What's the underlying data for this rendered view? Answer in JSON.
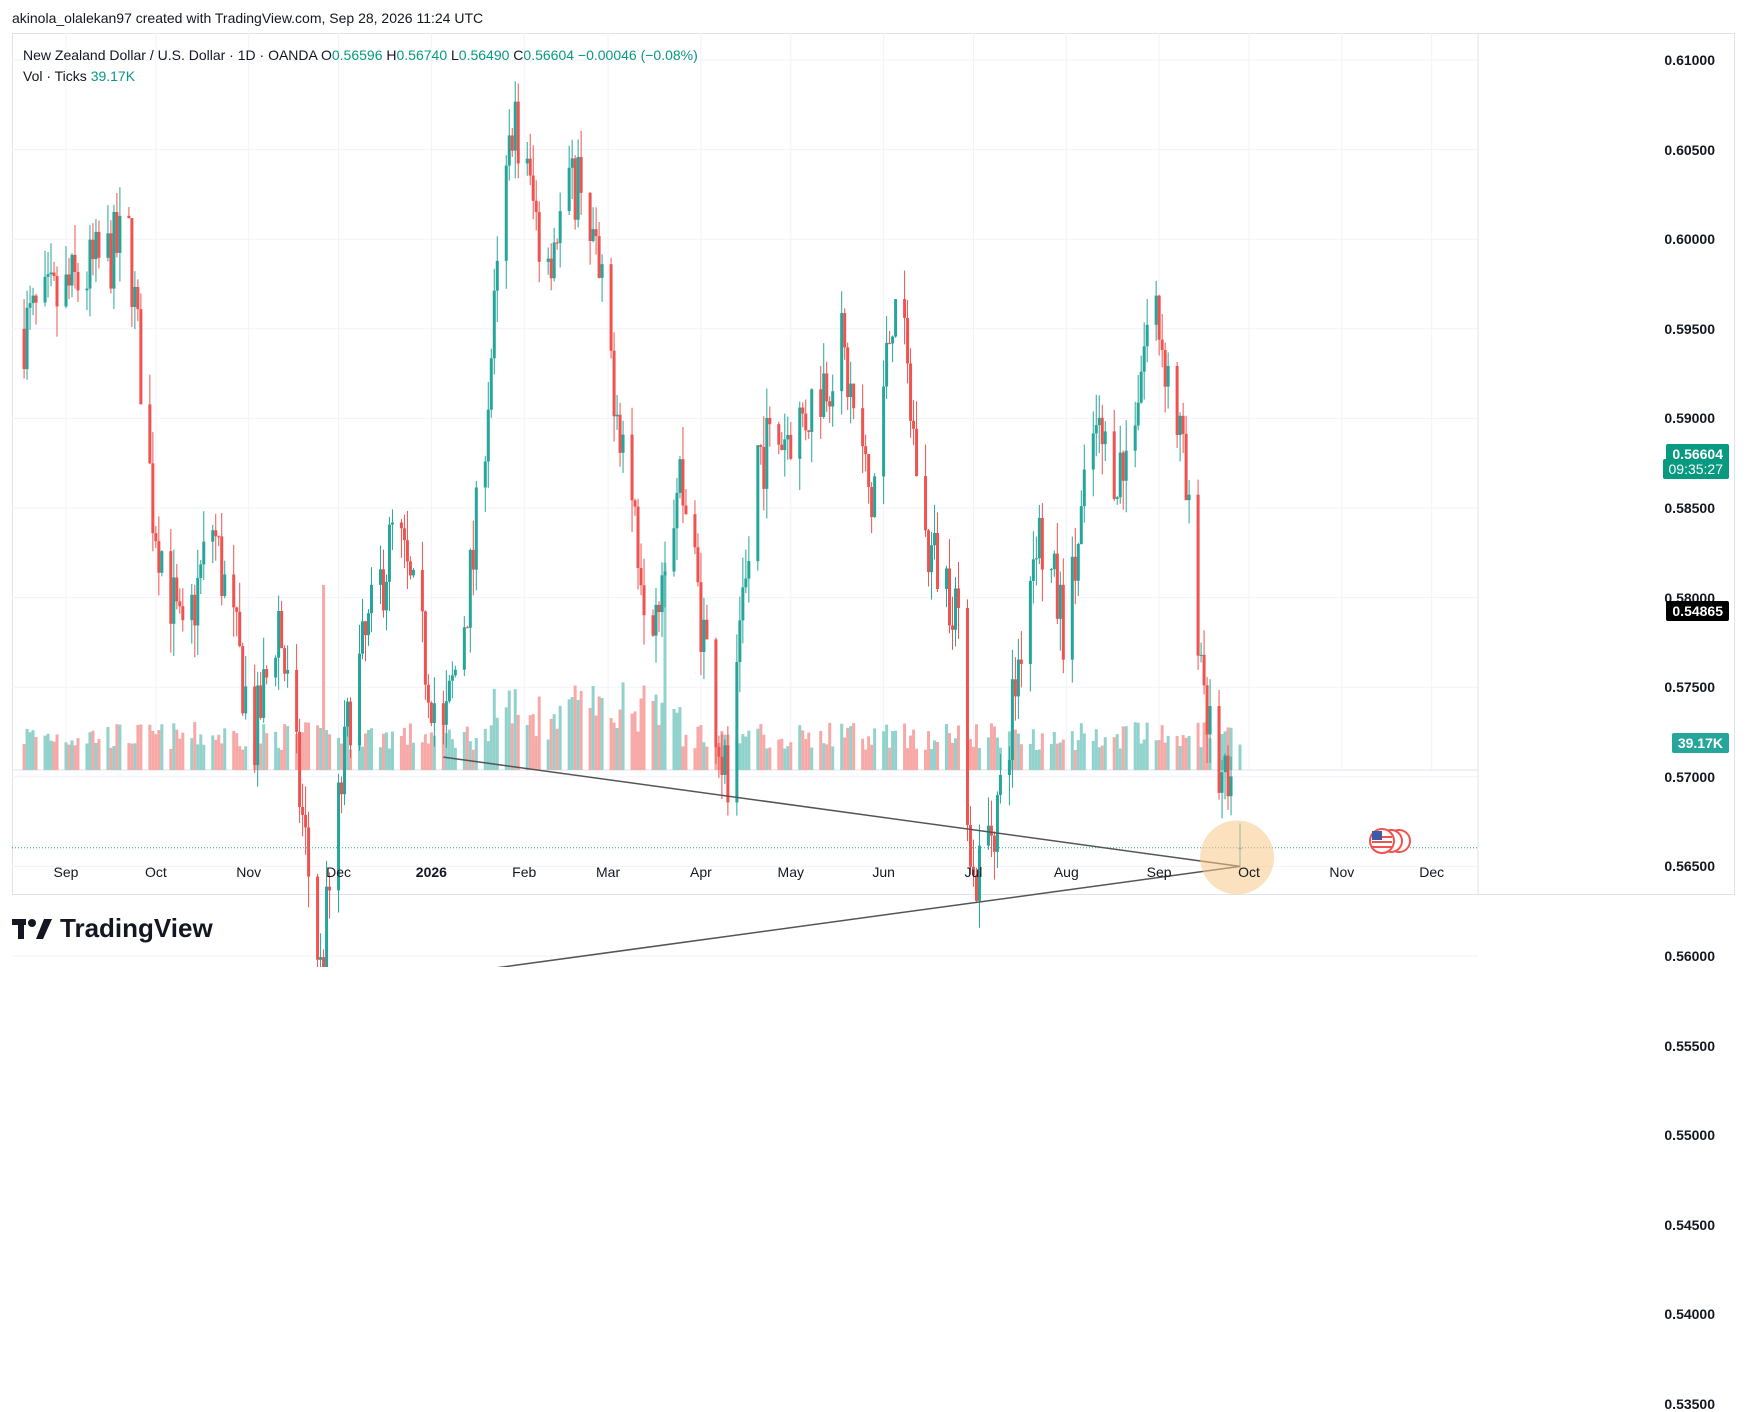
{
  "credit": "akinola_olalekan97 created with TradingView.com, Sep 28, 2026 11:24 UTC",
  "legend": {
    "symbol": "New Zealand Dollar / U.S. Dollar · 1D · OANDA",
    "o_label": "O",
    "o_val": "0.56596",
    "h_label": "H",
    "h_val": "0.56740",
    "l_label": "L",
    "l_val": "0.56490",
    "c_label": "C",
    "c_val": "0.56604",
    "change": "−0.00046 (−0.08%)",
    "vol_label": "Vol · Ticks",
    "vol_val": "39.17K"
  },
  "price_tags": {
    "last_price": "0.56604",
    "countdown": "09:35:27",
    "hline_price": "0.54865",
    "volume": "39.17K"
  },
  "colors": {
    "up": "#26a69a",
    "down": "#ef5350",
    "up_vol": "#92d2cc",
    "down_vol": "#f7a9a7",
    "trendline": "#555555",
    "hline": "#000000",
    "highlight": "#f9c98a"
  },
  "logo_text": "TradingView",
  "chart_data": {
    "type": "candlestick",
    "symbol": "NZDUSD",
    "timeframe": "1D",
    "y_ticks": [
      0.61,
      0.605,
      0.6,
      0.595,
      0.59,
      0.585,
      0.58,
      0.575,
      0.57,
      0.565,
      0.56,
      0.555,
      0.55,
      0.545,
      0.54,
      0.535
    ],
    "y_tick_labels": [
      "0.61000",
      "0.60500",
      "0.60000",
      "0.59500",
      "0.59000",
      "0.58500",
      "0.58000",
      "0.57500",
      "0.57000",
      "0.56500",
      "0.56000",
      "0.55500",
      "0.55000",
      "0.54500",
      "0.54000",
      "0.53500"
    ],
    "x_labels": [
      "Sep",
      "Oct",
      "Nov",
      "Dec",
      "2026",
      "Feb",
      "Mar",
      "Apr",
      "May",
      "Jun",
      "Jul",
      "Aug",
      "Sep",
      "Oct",
      "Nov",
      "Dec"
    ],
    "ylim": [
      0.5315,
      0.6145
    ],
    "last_close": 0.56604,
    "horizontal_line": 0.54865,
    "trendlines": [
      {
        "from": [
          "2026-01-05",
          0.5711
        ],
        "to": [
          "2026-09-28",
          0.565
        ]
      },
      {
        "from": [
          "2025-11-25",
          0.558
        ],
        "to": [
          "2026-09-28",
          0.565
        ]
      }
    ],
    "key_points": [
      {
        "date": "2025-08-18",
        "close": 0.595
      },
      {
        "date": "2025-09-22",
        "close": 0.6
      },
      {
        "date": "2025-09-30",
        "close": 0.585
      },
      {
        "date": "2025-10-10",
        "close": 0.577
      },
      {
        "date": "2025-10-20",
        "close": 0.584
      },
      {
        "date": "2025-11-03",
        "close": 0.572
      },
      {
        "date": "2025-11-11",
        "close": 0.579
      },
      {
        "date": "2025-11-25",
        "close": 0.559
      },
      {
        "date": "2025-12-05",
        "close": 0.574
      },
      {
        "date": "2025-12-20",
        "close": 0.584
      },
      {
        "date": "2026-01-05",
        "close": 0.572
      },
      {
        "date": "2026-01-15",
        "close": 0.582
      },
      {
        "date": "2026-01-28",
        "close": 0.607
      },
      {
        "date": "2026-02-08",
        "close": 0.599
      },
      {
        "date": "2026-02-20",
        "close": 0.604
      },
      {
        "date": "2026-03-05",
        "close": 0.59
      },
      {
        "date": "2026-03-15",
        "close": 0.579
      },
      {
        "date": "2026-03-25",
        "close": 0.587
      },
      {
        "date": "2026-04-10",
        "close": 0.569
      },
      {
        "date": "2026-04-20",
        "close": 0.588
      },
      {
        "date": "2026-05-05",
        "close": 0.59
      },
      {
        "date": "2026-05-18",
        "close": 0.594
      },
      {
        "date": "2026-05-28",
        "close": 0.585
      },
      {
        "date": "2026-06-05",
        "close": 0.598
      },
      {
        "date": "2026-06-15",
        "close": 0.583
      },
      {
        "date": "2026-06-25",
        "close": 0.58
      },
      {
        "date": "2026-07-01",
        "close": 0.564
      },
      {
        "date": "2026-07-10",
        "close": 0.569
      },
      {
        "date": "2026-07-22",
        "close": 0.584
      },
      {
        "date": "2026-08-01",
        "close": 0.578
      },
      {
        "date": "2026-08-10",
        "close": 0.589
      },
      {
        "date": "2026-08-20",
        "close": 0.587
      },
      {
        "date": "2026-08-30",
        "close": 0.597
      },
      {
        "date": "2026-09-08",
        "close": 0.589
      },
      {
        "date": "2026-09-18",
        "close": 0.572
      },
      {
        "date": "2026-09-28",
        "close": 0.56604
      }
    ],
    "volume_last": "39.17K"
  }
}
